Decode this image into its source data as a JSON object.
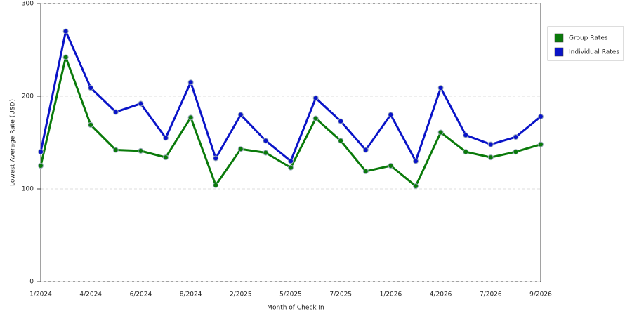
{
  "chart_data": {
    "type": "line",
    "x_label": "Month of Check In",
    "y_label": "Lowest Average Rate (USD)",
    "categories": [
      "1/2024",
      null,
      "4/2024",
      null,
      "6/2024",
      null,
      "8/2024",
      null,
      "2/2025",
      null,
      "5/2025",
      null,
      "7/2025",
      null,
      "1/2026",
      null,
      "4/2026",
      null,
      "7/2026",
      null,
      "9/2026"
    ],
    "series": [
      {
        "name": "Group Rates",
        "color": "#0a7a0a",
        "values": [
          125,
          242,
          169,
          142,
          141,
          134,
          177,
          104,
          143,
          139,
          123,
          176,
          152,
          119,
          125,
          103,
          161,
          140,
          134,
          140,
          148
        ]
      },
      {
        "name": "Individual Rates",
        "color": "#0a14c8",
        "values": [
          140,
          270,
          209,
          183,
          192,
          155,
          215,
          133,
          180,
          152,
          130,
          198,
          173,
          142,
          180,
          130,
          209,
          158,
          148,
          156,
          178
        ]
      }
    ],
    "ylim": [
      0,
      300
    ],
    "yticks": [
      0,
      100,
      200,
      300
    ],
    "grid": true,
    "legend": "right"
  }
}
